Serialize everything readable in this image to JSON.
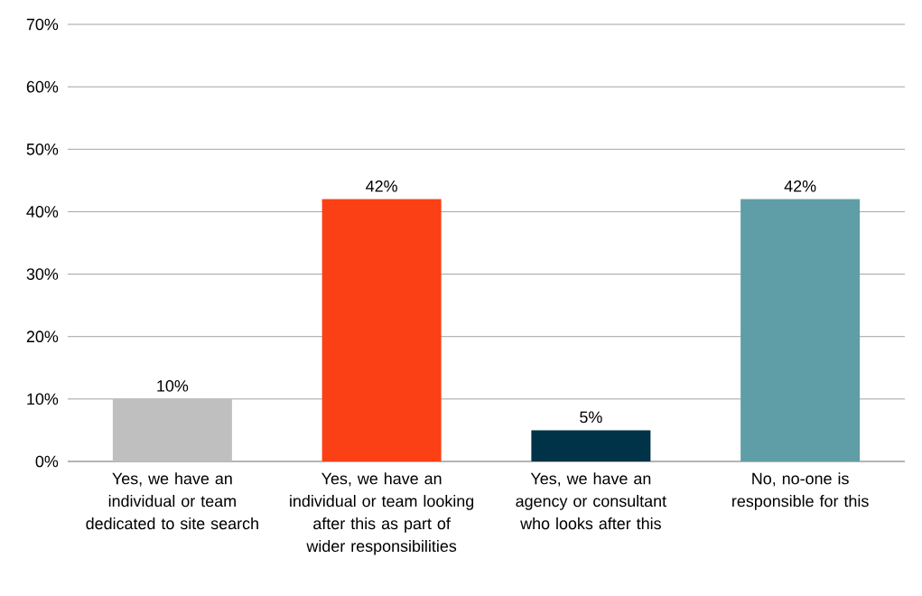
{
  "chart_data": {
    "type": "bar",
    "categories": [
      "Yes, we have an individual or team dedicated to site search",
      "Yes, we have an individual or team looking after this as part of wider responsibilities",
      "Yes, we have an agency or consultant who looks after this",
      "No, no-one is responsible for this"
    ],
    "values": [
      10,
      42,
      5,
      42
    ],
    "colors": [
      "#bfbfbf",
      "#fc4016",
      "#003347",
      "#5f9ea6"
    ],
    "value_labels": [
      "10%",
      "42%",
      "5%",
      "42%"
    ],
    "ylim": [
      0,
      70
    ],
    "yticks": [
      {
        "value": 0,
        "label": "0%"
      },
      {
        "value": 10,
        "label": "10%"
      },
      {
        "value": 20,
        "label": "20%"
      },
      {
        "value": 30,
        "label": "30%"
      },
      {
        "value": 40,
        "label": "40%"
      },
      {
        "value": 50,
        "label": "50%"
      },
      {
        "value": 60,
        "label": "60%"
      },
      {
        "value": 70,
        "label": "70%"
      }
    ],
    "grid": "y"
  }
}
